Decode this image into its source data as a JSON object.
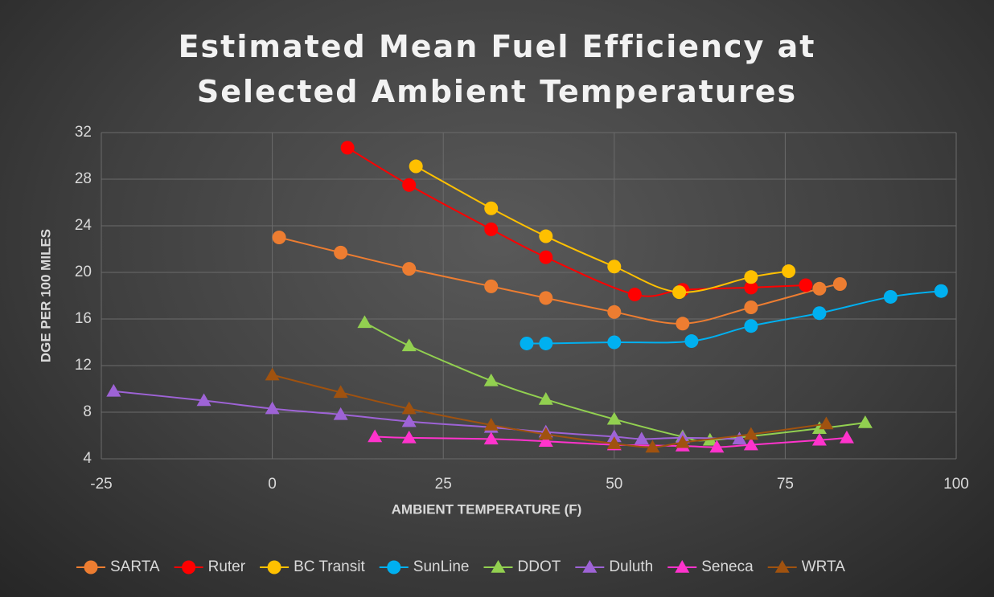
{
  "chart_data": {
    "type": "scatter-line",
    "title": "Estimated Mean Fuel Efficiency at Selected Ambient Temperatures",
    "xlabel": "AMBIENT TEMPERATURE (F)",
    "ylabel": "DGE PER 100 MILES",
    "xlim": [
      -25,
      100
    ],
    "xticks": [
      -25,
      0,
      25,
      50,
      75,
      100
    ],
    "ylim": [
      4,
      32
    ],
    "yticks": [
      4,
      8,
      12,
      16,
      20,
      24,
      28,
      32
    ],
    "grid": true,
    "smooth": true,
    "legend": "bottom",
    "series": [
      {
        "name": "SARTA",
        "color": "#ed7d31",
        "marker": "circle",
        "x": [
          1,
          10,
          20,
          32,
          40,
          50,
          60,
          70,
          80,
          83
        ],
        "values": [
          23.0,
          21.7,
          20.3,
          18.8,
          17.8,
          16.6,
          15.6,
          17.0,
          18.6,
          19.0
        ]
      },
      {
        "name": "Ruter",
        "color": "#ff0000",
        "marker": "circle",
        "x": [
          11,
          20,
          32,
          40,
          53,
          60,
          70,
          78
        ],
        "values": [
          30.7,
          27.5,
          23.7,
          21.3,
          18.1,
          18.5,
          18.7,
          18.9
        ]
      },
      {
        "name": "BC Transit",
        "color": "#ffc000",
        "marker": "circle",
        "x": [
          21,
          32,
          40,
          50,
          59.5,
          70,
          75.5
        ],
        "values": [
          29.1,
          25.5,
          23.1,
          20.5,
          18.3,
          19.6,
          20.1
        ]
      },
      {
        "name": "SunLine",
        "color": "#00b0f0",
        "marker": "circle",
        "x": [
          37.2,
          40,
          50,
          61.3,
          70,
          80,
          90.4,
          97.8
        ],
        "values": [
          13.9,
          13.9,
          14.0,
          14.1,
          15.4,
          16.5,
          17.9,
          18.4
        ]
      },
      {
        "name": "DDOT",
        "color": "#92d050",
        "marker": "triangle",
        "x": [
          13.5,
          20,
          32,
          40,
          50,
          60,
          64,
          80,
          86.7
        ],
        "values": [
          15.7,
          13.7,
          10.7,
          9.1,
          7.4,
          5.9,
          5.6,
          6.6,
          7.1
        ]
      },
      {
        "name": "Duluth",
        "color": "#9e63d6",
        "marker": "triangle",
        "x": [
          -23.2,
          -10,
          0,
          10,
          20,
          32,
          40,
          50,
          54,
          60,
          68.3
        ],
        "values": [
          9.8,
          9.0,
          8.3,
          7.8,
          7.2,
          6.7,
          6.3,
          5.9,
          5.7,
          5.8,
          5.7
        ]
      },
      {
        "name": "Seneca",
        "color": "#ff33cc",
        "marker": "triangle",
        "x": [
          15,
          20,
          32,
          40,
          50,
          60,
          65,
          70,
          80,
          84
        ],
        "values": [
          5.9,
          5.8,
          5.7,
          5.5,
          5.2,
          5.1,
          5.0,
          5.2,
          5.6,
          5.8
        ]
      },
      {
        "name": "WRTA",
        "color": "#a0520f",
        "marker": "triangle",
        "x": [
          0,
          10,
          20,
          32,
          40,
          50,
          55.6,
          60,
          70,
          81
        ],
        "values": [
          11.2,
          9.7,
          8.3,
          6.9,
          6.1,
          5.3,
          5.0,
          5.4,
          6.1,
          7.0
        ]
      }
    ]
  }
}
